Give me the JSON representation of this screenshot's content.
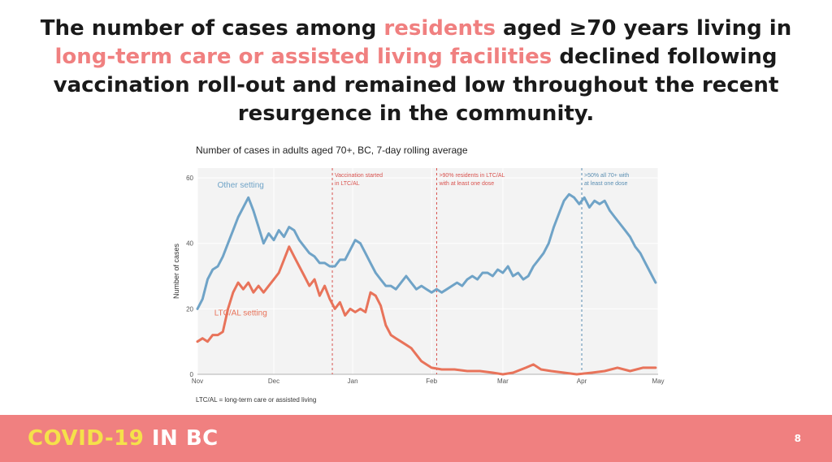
{
  "slide": {
    "headline_parts": [
      {
        "text": "The number of cases among ",
        "highlight": false
      },
      {
        "text": "residents",
        "highlight": true
      },
      {
        "text": " aged ≥70 years living in ",
        "highlight": false
      },
      {
        "text": "long-term care or assisted living facilities",
        "highlight": true
      },
      {
        "text": " declined following vaccination roll-out and remained low throughout the recent resurgence in the community.",
        "highlight": false
      }
    ],
    "footer": {
      "brand_part1": "COVID-19",
      "brand_part2": " IN BC",
      "page_number": "8"
    },
    "colors": {
      "highlight": "#f08080",
      "footer_bg": "#f08080",
      "brand_yellow": "#f5e14a"
    }
  },
  "chart_data": {
    "type": "line",
    "title": "Number of cases in adults aged 70+, BC, 7-day rolling average",
    "footnote": "LTC/AL = long-term care or assisted living",
    "ylabel": "Number of cases",
    "xlabel": "",
    "ylim": [
      0,
      63
    ],
    "yticks": [
      0,
      20,
      40,
      60
    ],
    "x_domain": [
      "2020-11-01",
      "2021-05-01"
    ],
    "xticks": [
      {
        "date": "2020-11-01",
        "label": "Nov"
      },
      {
        "date": "2020-12-01",
        "label": "Dec"
      },
      {
        "date": "2021-01-01",
        "label": "Jan"
      },
      {
        "date": "2021-02-01",
        "label": "Feb"
      },
      {
        "date": "2021-03-01",
        "label": "Mar"
      },
      {
        "date": "2021-04-01",
        "label": "Apr"
      },
      {
        "date": "2021-05-01",
        "label": "May"
      }
    ],
    "grid": true,
    "series": [
      {
        "name": "Other setting",
        "color": "#6fa3c7",
        "label_anchor": {
          "x": "2020-11-18",
          "y": 57
        },
        "points": [
          {
            "x": "2020-11-01",
            "y": 20
          },
          {
            "x": "2020-11-03",
            "y": 23
          },
          {
            "x": "2020-11-05",
            "y": 29
          },
          {
            "x": "2020-11-07",
            "y": 32
          },
          {
            "x": "2020-11-09",
            "y": 33
          },
          {
            "x": "2020-11-11",
            "y": 36
          },
          {
            "x": "2020-11-13",
            "y": 40
          },
          {
            "x": "2020-11-15",
            "y": 44
          },
          {
            "x": "2020-11-17",
            "y": 48
          },
          {
            "x": "2020-11-19",
            "y": 51
          },
          {
            "x": "2020-11-21",
            "y": 54
          },
          {
            "x": "2020-11-23",
            "y": 50
          },
          {
            "x": "2020-11-25",
            "y": 45
          },
          {
            "x": "2020-11-27",
            "y": 40
          },
          {
            "x": "2020-11-29",
            "y": 43
          },
          {
            "x": "2020-12-01",
            "y": 41
          },
          {
            "x": "2020-12-03",
            "y": 44
          },
          {
            "x": "2020-12-05",
            "y": 42
          },
          {
            "x": "2020-12-07",
            "y": 45
          },
          {
            "x": "2020-12-09",
            "y": 44
          },
          {
            "x": "2020-12-11",
            "y": 41
          },
          {
            "x": "2020-12-13",
            "y": 39
          },
          {
            "x": "2020-12-15",
            "y": 37
          },
          {
            "x": "2020-12-17",
            "y": 36
          },
          {
            "x": "2020-12-19",
            "y": 34
          },
          {
            "x": "2020-12-21",
            "y": 34
          },
          {
            "x": "2020-12-23",
            "y": 33
          },
          {
            "x": "2020-12-25",
            "y": 33
          },
          {
            "x": "2020-12-27",
            "y": 35
          },
          {
            "x": "2020-12-29",
            "y": 35
          },
          {
            "x": "2020-12-31",
            "y": 38
          },
          {
            "x": "2021-01-02",
            "y": 41
          },
          {
            "x": "2021-01-04",
            "y": 40
          },
          {
            "x": "2021-01-06",
            "y": 37
          },
          {
            "x": "2021-01-08",
            "y": 34
          },
          {
            "x": "2021-01-10",
            "y": 31
          },
          {
            "x": "2021-01-12",
            "y": 29
          },
          {
            "x": "2021-01-14",
            "y": 27
          },
          {
            "x": "2021-01-16",
            "y": 27
          },
          {
            "x": "2021-01-18",
            "y": 26
          },
          {
            "x": "2021-01-20",
            "y": 28
          },
          {
            "x": "2021-01-22",
            "y": 30
          },
          {
            "x": "2021-01-24",
            "y": 28
          },
          {
            "x": "2021-01-26",
            "y": 26
          },
          {
            "x": "2021-01-28",
            "y": 27
          },
          {
            "x": "2021-01-30",
            "y": 26
          },
          {
            "x": "2021-02-01",
            "y": 25
          },
          {
            "x": "2021-02-03",
            "y": 26
          },
          {
            "x": "2021-02-05",
            "y": 25
          },
          {
            "x": "2021-02-07",
            "y": 26
          },
          {
            "x": "2021-02-09",
            "y": 27
          },
          {
            "x": "2021-02-11",
            "y": 28
          },
          {
            "x": "2021-02-13",
            "y": 27
          },
          {
            "x": "2021-02-15",
            "y": 29
          },
          {
            "x": "2021-02-17",
            "y": 30
          },
          {
            "x": "2021-02-19",
            "y": 29
          },
          {
            "x": "2021-02-21",
            "y": 31
          },
          {
            "x": "2021-02-23",
            "y": 31
          },
          {
            "x": "2021-02-25",
            "y": 30
          },
          {
            "x": "2021-02-27",
            "y": 32
          },
          {
            "x": "2021-03-01",
            "y": 31
          },
          {
            "x": "2021-03-03",
            "y": 33
          },
          {
            "x": "2021-03-05",
            "y": 30
          },
          {
            "x": "2021-03-07",
            "y": 31
          },
          {
            "x": "2021-03-09",
            "y": 29
          },
          {
            "x": "2021-03-11",
            "y": 30
          },
          {
            "x": "2021-03-13",
            "y": 33
          },
          {
            "x": "2021-03-15",
            "y": 35
          },
          {
            "x": "2021-03-17",
            "y": 37
          },
          {
            "x": "2021-03-19",
            "y": 40
          },
          {
            "x": "2021-03-21",
            "y": 45
          },
          {
            "x": "2021-03-23",
            "y": 49
          },
          {
            "x": "2021-03-25",
            "y": 53
          },
          {
            "x": "2021-03-27",
            "y": 55
          },
          {
            "x": "2021-03-29",
            "y": 54
          },
          {
            "x": "2021-03-31",
            "y": 52
          },
          {
            "x": "2021-04-02",
            "y": 54
          },
          {
            "x": "2021-04-04",
            "y": 51
          },
          {
            "x": "2021-04-06",
            "y": 53
          },
          {
            "x": "2021-04-08",
            "y": 52
          },
          {
            "x": "2021-04-10",
            "y": 53
          },
          {
            "x": "2021-04-12",
            "y": 50
          },
          {
            "x": "2021-04-14",
            "y": 48
          },
          {
            "x": "2021-04-16",
            "y": 46
          },
          {
            "x": "2021-04-18",
            "y": 44
          },
          {
            "x": "2021-04-20",
            "y": 42
          },
          {
            "x": "2021-04-22",
            "y": 39
          },
          {
            "x": "2021-04-24",
            "y": 37
          },
          {
            "x": "2021-04-26",
            "y": 34
          },
          {
            "x": "2021-04-28",
            "y": 31
          },
          {
            "x": "2021-04-30",
            "y": 28
          }
        ]
      },
      {
        "name": "LTC/AL setting",
        "color": "#e8735a",
        "label_anchor": {
          "x": "2020-11-18",
          "y": 18
        },
        "points": [
          {
            "x": "2020-11-01",
            "y": 10
          },
          {
            "x": "2020-11-03",
            "y": 11
          },
          {
            "x": "2020-11-05",
            "y": 10
          },
          {
            "x": "2020-11-07",
            "y": 12
          },
          {
            "x": "2020-11-09",
            "y": 12
          },
          {
            "x": "2020-11-11",
            "y": 13
          },
          {
            "x": "2020-11-13",
            "y": 20
          },
          {
            "x": "2020-11-15",
            "y": 25
          },
          {
            "x": "2020-11-17",
            "y": 28
          },
          {
            "x": "2020-11-19",
            "y": 26
          },
          {
            "x": "2020-11-21",
            "y": 28
          },
          {
            "x": "2020-11-23",
            "y": 25
          },
          {
            "x": "2020-11-25",
            "y": 27
          },
          {
            "x": "2020-11-27",
            "y": 25
          },
          {
            "x": "2020-11-29",
            "y": 27
          },
          {
            "x": "2020-12-01",
            "y": 29
          },
          {
            "x": "2020-12-03",
            "y": 31
          },
          {
            "x": "2020-12-05",
            "y": 35
          },
          {
            "x": "2020-12-07",
            "y": 39
          },
          {
            "x": "2020-12-09",
            "y": 36
          },
          {
            "x": "2020-12-11",
            "y": 33
          },
          {
            "x": "2020-12-13",
            "y": 30
          },
          {
            "x": "2020-12-15",
            "y": 27
          },
          {
            "x": "2020-12-17",
            "y": 29
          },
          {
            "x": "2020-12-19",
            "y": 24
          },
          {
            "x": "2020-12-21",
            "y": 27
          },
          {
            "x": "2020-12-23",
            "y": 23
          },
          {
            "x": "2020-12-25",
            "y": 20
          },
          {
            "x": "2020-12-27",
            "y": 22
          },
          {
            "x": "2020-12-29",
            "y": 18
          },
          {
            "x": "2020-12-31",
            "y": 20
          },
          {
            "x": "2021-01-02",
            "y": 19
          },
          {
            "x": "2021-01-04",
            "y": 20
          },
          {
            "x": "2021-01-06",
            "y": 19
          },
          {
            "x": "2021-01-08",
            "y": 25
          },
          {
            "x": "2021-01-10",
            "y": 24
          },
          {
            "x": "2021-01-12",
            "y": 21
          },
          {
            "x": "2021-01-14",
            "y": 15
          },
          {
            "x": "2021-01-16",
            "y": 12
          },
          {
            "x": "2021-01-18",
            "y": 11
          },
          {
            "x": "2021-01-20",
            "y": 10
          },
          {
            "x": "2021-01-22",
            "y": 9
          },
          {
            "x": "2021-01-24",
            "y": 8
          },
          {
            "x": "2021-01-26",
            "y": 6
          },
          {
            "x": "2021-01-28",
            "y": 4
          },
          {
            "x": "2021-01-30",
            "y": 3
          },
          {
            "x": "2021-02-01",
            "y": 2
          },
          {
            "x": "2021-02-05",
            "y": 1.5
          },
          {
            "x": "2021-02-10",
            "y": 1.5
          },
          {
            "x": "2021-02-15",
            "y": 1
          },
          {
            "x": "2021-02-20",
            "y": 1
          },
          {
            "x": "2021-02-25",
            "y": 0.5
          },
          {
            "x": "2021-03-01",
            "y": 0
          },
          {
            "x": "2021-03-05",
            "y": 0.5
          },
          {
            "x": "2021-03-10",
            "y": 2
          },
          {
            "x": "2021-03-13",
            "y": 3
          },
          {
            "x": "2021-03-16",
            "y": 1.5
          },
          {
            "x": "2021-03-20",
            "y": 1
          },
          {
            "x": "2021-03-25",
            "y": 0.5
          },
          {
            "x": "2021-03-30",
            "y": 0
          },
          {
            "x": "2021-04-05",
            "y": 0.5
          },
          {
            "x": "2021-04-10",
            "y": 1
          },
          {
            "x": "2021-04-15",
            "y": 2
          },
          {
            "x": "2021-04-20",
            "y": 1
          },
          {
            "x": "2021-04-25",
            "y": 2
          },
          {
            "x": "2021-04-30",
            "y": 2
          }
        ]
      }
    ],
    "annotations": [
      {
        "date": "2020-12-24",
        "color": "#d9534f",
        "lines": [
          "Vaccination started",
          "in LTC/AL"
        ]
      },
      {
        "date": "2021-02-03",
        "color": "#d9534f",
        "lines": [
          ">90% residents in LTC/AL",
          "with at least one dose"
        ]
      },
      {
        "date": "2021-04-01",
        "color": "#5b8fb3",
        "lines": [
          ">50% all 70+ with",
          "at least one dose"
        ]
      }
    ]
  }
}
